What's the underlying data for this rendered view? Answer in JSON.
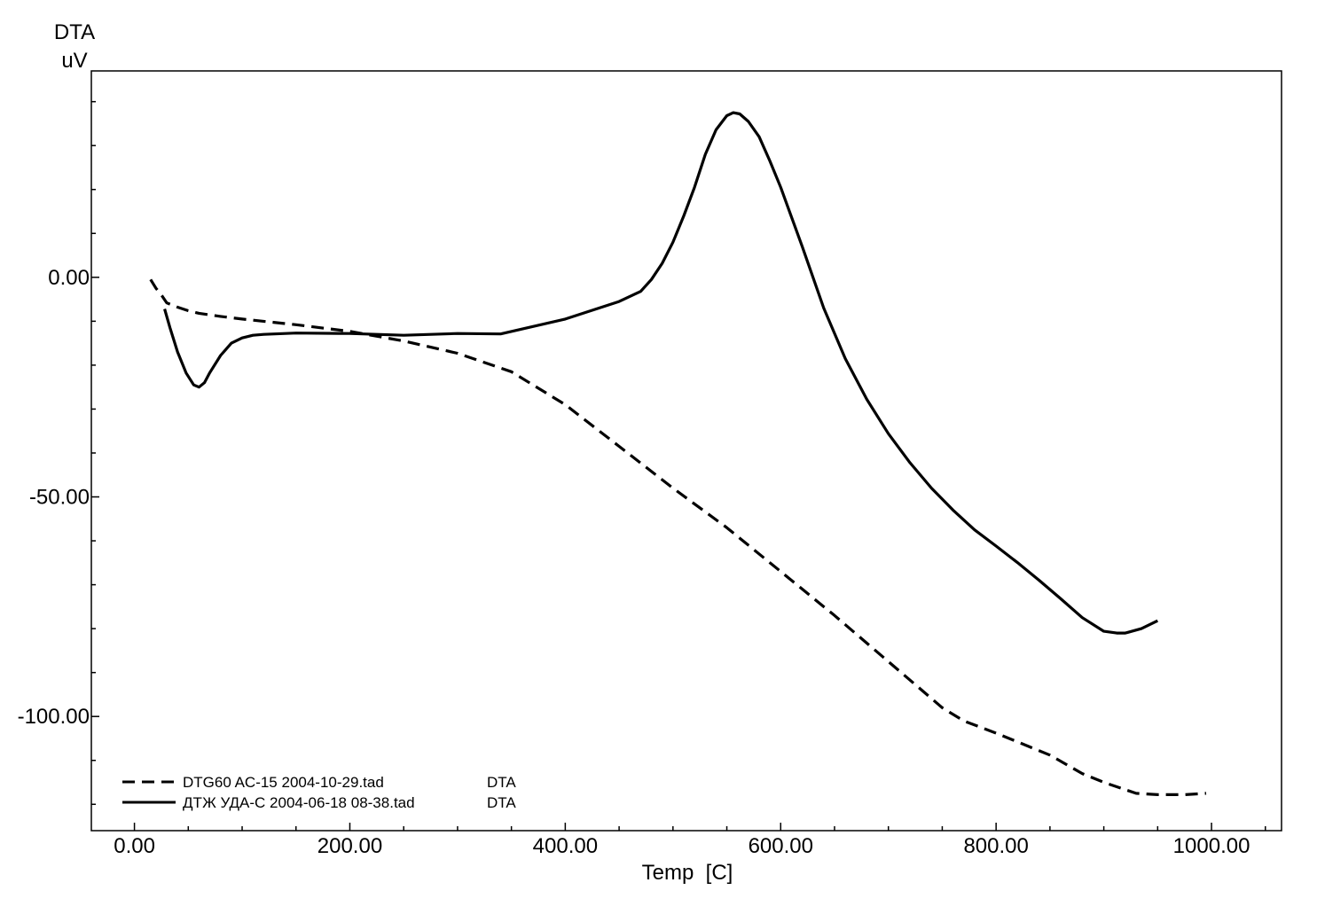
{
  "chart_data": {
    "type": "line",
    "title": "",
    "ylabel_line1": "DTA",
    "ylabel_line2": "uV",
    "xlabel": "Temp  [C]",
    "xlim": [
      -40,
      1065
    ],
    "ylim": [
      -126,
      47
    ],
    "x_ticks": [
      0,
      200,
      400,
      600,
      800,
      1000
    ],
    "x_tick_labels": [
      "0.00",
      "200.00",
      "400.00",
      "600.00",
      "800.00",
      "1000.00"
    ],
    "x_minor_step": 50,
    "y_ticks": [
      0,
      -50,
      -100
    ],
    "y_tick_labels": [
      "0.00",
      "-50.00",
      "-100.00"
    ],
    "y_minor_step": 10,
    "grid": false,
    "legend_position": "bottom-left",
    "series": [
      {
        "name": "DTG60 AC-15 2004-10-29.tad",
        "signal": "DTA",
        "style": "dashed",
        "color": "#000000",
        "x": [
          15,
          20,
          25,
          30,
          40,
          50,
          60,
          80,
          100,
          150,
          200,
          250,
          300,
          350,
          400,
          450,
          500,
          550,
          600,
          650,
          700,
          750,
          770,
          800,
          850,
          880,
          900,
          930,
          950,
          975,
          995
        ],
        "y": [
          -0.5,
          -2.5,
          -4,
          -5.8,
          -6.8,
          -7.6,
          -8.2,
          -8.9,
          -9.5,
          -10.8,
          -12.3,
          -14.5,
          -17.3,
          -21.5,
          -29,
          -38.5,
          -48,
          -57,
          -67,
          -77,
          -87.5,
          -98,
          -101,
          -103.8,
          -108.8,
          -113,
          -115,
          -117.5,
          -117.8,
          -117.8,
          -117.5
        ]
      },
      {
        "name": "ДТЖ УДА-С     2004-06-18 08-38.tad",
        "signal": "DTA",
        "style": "solid",
        "color": "#000000",
        "x": [
          28,
          33,
          40,
          48,
          55,
          60,
          65,
          70,
          80,
          90,
          100,
          110,
          120,
          150,
          200,
          250,
          300,
          340,
          400,
          450,
          470,
          480,
          490,
          500,
          510,
          520,
          530,
          540,
          550,
          556,
          562,
          570,
          580,
          590,
          600,
          620,
          640,
          660,
          680,
          700,
          720,
          740,
          760,
          780,
          800,
          820,
          840,
          860,
          880,
          900,
          912,
          920,
          935,
          950
        ],
        "y": [
          -7.2,
          -11.5,
          -17,
          -21.8,
          -24.5,
          -25,
          -24,
          -21.7,
          -17.8,
          -15,
          -13.8,
          -13.2,
          -13,
          -12.7,
          -12.8,
          -13.2,
          -12.8,
          -12.9,
          -9.5,
          -5.5,
          -3.2,
          -0.5,
          3.2,
          8,
          14,
          20.5,
          28,
          33.6,
          36.8,
          37.5,
          37.2,
          35.5,
          32,
          26.5,
          20.5,
          7,
          -7,
          -18.5,
          -27.8,
          -35.6,
          -42.2,
          -48,
          -53,
          -57.5,
          -61.2,
          -65,
          -69,
          -73.2,
          -77.5,
          -80.6,
          -81,
          -81,
          -80,
          -78.2
        ]
      }
    ]
  }
}
